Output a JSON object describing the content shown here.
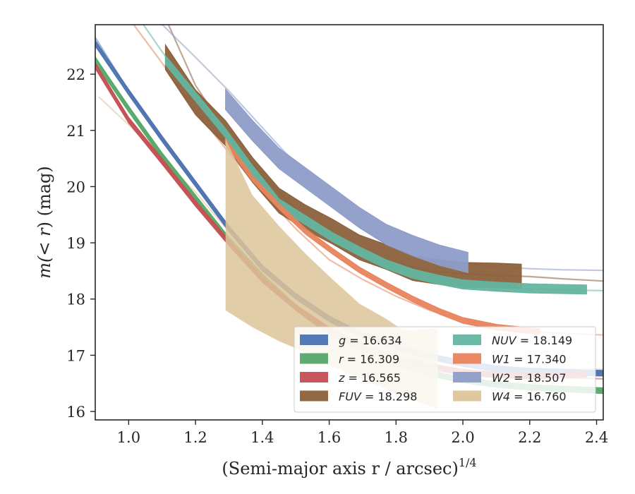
{
  "chart_data": {
    "type": "line",
    "xlabel": "(Semi-major axis r / arcsec)",
    "xlabel_superscript": "1/4",
    "ylabel_pre": "m(",
    "ylabel_mid": "< r",
    "ylabel_post": ") (mag)",
    "xlim": [
      0.9,
      2.42
    ],
    "ylim": [
      22.88,
      15.85
    ],
    "y_inverted": true,
    "grid": false,
    "legend_position": "lower-right",
    "xticks": [
      {
        "value": 1.0,
        "label": "1.0"
      },
      {
        "value": 1.2,
        "label": "1.2"
      },
      {
        "value": 1.4,
        "label": "1.4"
      },
      {
        "value": 1.6,
        "label": "1.6"
      },
      {
        "value": 1.8,
        "label": "1.8"
      },
      {
        "value": 2.0,
        "label": "2.0"
      },
      {
        "value": 2.2,
        "label": "2.2"
      },
      {
        "value": 2.4,
        "label": "2.4"
      }
    ],
    "yticks": [
      {
        "value": 16,
        "label": "16"
      },
      {
        "value": 17,
        "label": "17"
      },
      {
        "value": 18,
        "label": "18"
      },
      {
        "value": 19,
        "label": "19"
      },
      {
        "value": 20,
        "label": "20"
      },
      {
        "value": 21,
        "label": "21"
      },
      {
        "value": 22,
        "label": "22"
      }
    ],
    "series": [
      {
        "id": "g",
        "band": "g",
        "italic_band": true,
        "value": "16.634",
        "color": "#4c72b0",
        "fit": [
          [
            0.9,
            22.65
          ],
          [
            1.0,
            21.7
          ],
          [
            1.1,
            20.85
          ],
          [
            1.2,
            20.05
          ],
          [
            1.3,
            19.25
          ],
          [
            1.4,
            18.55
          ],
          [
            1.5,
            18.05
          ],
          [
            1.6,
            17.65
          ],
          [
            1.7,
            17.35
          ],
          [
            1.8,
            17.15
          ],
          [
            1.9,
            16.98
          ],
          [
            2.0,
            16.85
          ],
          [
            2.1,
            16.78
          ],
          [
            2.2,
            16.74
          ],
          [
            2.3,
            16.71
          ],
          [
            2.42,
            16.7
          ]
        ],
        "data": [
          [
            0.9,
            22.55
          ],
          [
            1.0,
            21.68
          ],
          [
            1.1,
            20.85
          ],
          [
            1.2,
            20.05
          ],
          [
            1.3,
            19.25
          ],
          [
            1.4,
            18.55
          ],
          [
            1.5,
            18.05
          ],
          [
            1.6,
            17.65
          ],
          [
            1.7,
            17.35
          ],
          [
            1.8,
            17.15
          ],
          [
            1.9,
            16.98
          ],
          [
            2.0,
            16.85
          ],
          [
            2.1,
            16.76
          ],
          [
            2.2,
            16.72
          ],
          [
            2.3,
            16.7
          ],
          [
            2.42,
            16.68
          ]
        ],
        "band_halfwidth": 0.05,
        "data_xmax": 2.42
      },
      {
        "id": "r",
        "band": "r",
        "italic_band": true,
        "value": "16.309",
        "color": "#55a868",
        "fit": [
          [
            0.9,
            22.3
          ],
          [
            1.0,
            21.4
          ],
          [
            1.1,
            20.55
          ],
          [
            1.2,
            19.8
          ],
          [
            1.3,
            19.05
          ],
          [
            1.4,
            18.4
          ],
          [
            1.5,
            17.85
          ],
          [
            1.6,
            17.4
          ],
          [
            1.7,
            17.1
          ],
          [
            1.8,
            16.85
          ],
          [
            1.9,
            16.68
          ],
          [
            2.0,
            16.56
          ],
          [
            2.1,
            16.48
          ],
          [
            2.2,
            16.43
          ],
          [
            2.3,
            16.4
          ],
          [
            2.42,
            16.38
          ]
        ],
        "data": [
          [
            0.9,
            22.25
          ],
          [
            1.0,
            21.38
          ],
          [
            1.1,
            20.55
          ],
          [
            1.2,
            19.8
          ],
          [
            1.3,
            19.05
          ],
          [
            1.4,
            18.4
          ],
          [
            1.5,
            17.85
          ],
          [
            1.6,
            17.4
          ],
          [
            1.7,
            17.1
          ],
          [
            1.8,
            16.85
          ],
          [
            1.9,
            16.68
          ],
          [
            2.0,
            16.56
          ],
          [
            2.1,
            16.48
          ],
          [
            2.2,
            16.43
          ],
          [
            2.3,
            16.4
          ],
          [
            2.42,
            16.37
          ]
        ],
        "band_halfwidth": 0.05,
        "data_xmax": 2.42
      },
      {
        "id": "z",
        "band": "z",
        "italic_band": true,
        "value": "16.565",
        "color": "#c44e52",
        "fit": [
          [
            0.9,
            22.2
          ],
          [
            1.0,
            21.2
          ],
          [
            1.1,
            20.45
          ],
          [
            1.2,
            19.7
          ],
          [
            1.3,
            19.0
          ],
          [
            1.4,
            18.35
          ],
          [
            1.5,
            17.85
          ],
          [
            1.6,
            17.45
          ],
          [
            1.7,
            17.15
          ],
          [
            1.8,
            16.95
          ],
          [
            1.9,
            16.8
          ],
          [
            2.0,
            16.7
          ],
          [
            2.1,
            16.65
          ],
          [
            2.2,
            16.62
          ],
          [
            2.3,
            16.6
          ],
          [
            2.42,
            16.58
          ]
        ],
        "data": [
          [
            0.9,
            22.15
          ],
          [
            1.0,
            21.18
          ],
          [
            1.1,
            20.45
          ],
          [
            1.2,
            19.7
          ],
          [
            1.3,
            19.0
          ],
          [
            1.4,
            18.35
          ],
          [
            1.5,
            17.85
          ],
          [
            1.6,
            17.45
          ],
          [
            1.7,
            17.15
          ],
          [
            1.8,
            16.95
          ],
          [
            1.9,
            16.8
          ],
          [
            2.0,
            16.7
          ],
          [
            2.1,
            16.65
          ],
          [
            2.2,
            16.63
          ],
          [
            2.37,
            16.66
          ]
        ],
        "band_halfwidth": 0.05,
        "data_xmax": 2.37
      },
      {
        "id": "FUV",
        "band": "FUV",
        "italic_band": true,
        "value": "18.298",
        "color": "#8c613c",
        "fit": [
          [
            1.11,
            23.0
          ],
          [
            1.2,
            21.8
          ],
          [
            1.3,
            20.9
          ],
          [
            1.4,
            20.2
          ],
          [
            1.5,
            19.6
          ],
          [
            1.6,
            19.15
          ],
          [
            1.7,
            18.85
          ],
          [
            1.8,
            18.65
          ],
          [
            1.9,
            18.5
          ],
          [
            2.0,
            18.45
          ],
          [
            2.1,
            18.42
          ],
          [
            2.2,
            18.4
          ],
          [
            2.3,
            18.36
          ],
          [
            2.42,
            18.32
          ]
        ],
        "data": [
          [
            1.11,
            22.3
          ],
          [
            1.2,
            21.5
          ],
          [
            1.29,
            20.95
          ],
          [
            1.37,
            20.3
          ],
          [
            1.45,
            19.75
          ],
          [
            1.53,
            19.45
          ],
          [
            1.61,
            19.2
          ],
          [
            1.69,
            18.92
          ],
          [
            1.77,
            18.75
          ],
          [
            1.85,
            18.55
          ],
          [
            1.93,
            18.48
          ],
          [
            2.0,
            18.43
          ],
          [
            2.1,
            18.42
          ],
          [
            2.175,
            18.4
          ]
        ],
        "band_halfwidth": 0.22,
        "data_xmax": 2.175
      },
      {
        "id": "NUV",
        "band": "NUV",
        "italic_band": true,
        "value": "18.149",
        "color": "#64b5a0",
        "fit": [
          [
            1.03,
            23.0
          ],
          [
            1.1,
            22.4
          ],
          [
            1.2,
            21.6
          ],
          [
            1.3,
            20.9
          ],
          [
            1.4,
            20.2
          ],
          [
            1.5,
            19.6
          ],
          [
            1.6,
            19.15
          ],
          [
            1.7,
            18.85
          ],
          [
            1.8,
            18.6
          ],
          [
            1.9,
            18.42
          ],
          [
            2.0,
            18.3
          ],
          [
            2.1,
            18.22
          ],
          [
            2.2,
            18.18
          ],
          [
            2.3,
            18.16
          ],
          [
            2.42,
            18.15
          ]
        ],
        "data": [
          [
            1.11,
            22.25
          ],
          [
            1.2,
            21.6
          ],
          [
            1.29,
            20.95
          ],
          [
            1.37,
            20.3
          ],
          [
            1.45,
            19.7
          ],
          [
            1.53,
            19.4
          ],
          [
            1.61,
            19.1
          ],
          [
            1.69,
            18.85
          ],
          [
            1.77,
            18.62
          ],
          [
            1.85,
            18.45
          ],
          [
            1.93,
            18.34
          ],
          [
            2.0,
            18.26
          ],
          [
            2.1,
            18.22
          ],
          [
            2.2,
            18.19
          ],
          [
            2.37,
            18.17
          ]
        ],
        "band_halfwidth": 0.08,
        "data_xmax": 2.37
      },
      {
        "id": "W1",
        "band": "W1",
        "italic_band": true,
        "value": "17.340",
        "color": "#e8845d",
        "fit": [
          [
            1.0,
            23.0
          ],
          [
            1.1,
            22.2
          ],
          [
            1.2,
            21.35
          ],
          [
            1.3,
            20.6
          ],
          [
            1.4,
            19.9
          ],
          [
            1.5,
            19.25
          ],
          [
            1.6,
            18.7
          ],
          [
            1.7,
            18.35
          ],
          [
            1.8,
            18.05
          ],
          [
            1.9,
            17.8
          ],
          [
            2.0,
            17.62
          ],
          [
            2.1,
            17.5
          ],
          [
            2.2,
            17.43
          ],
          [
            2.3,
            17.39
          ],
          [
            2.42,
            17.36
          ]
        ],
        "data": [
          [
            1.29,
            20.8
          ],
          [
            1.37,
            20.15
          ],
          [
            1.45,
            19.65
          ],
          [
            1.53,
            19.2
          ],
          [
            1.61,
            18.85
          ],
          [
            1.69,
            18.52
          ],
          [
            1.77,
            18.25
          ],
          [
            1.85,
            18.0
          ],
          [
            1.93,
            17.78
          ],
          [
            2.0,
            17.62
          ],
          [
            2.1,
            17.5
          ],
          [
            2.23,
            17.42
          ]
        ],
        "band_halfwidth": 0.05,
        "data_xmax": 2.23
      },
      {
        "id": "W2",
        "band": "W2",
        "italic_band": true,
        "value": "18.507",
        "color": "#8e9dc8",
        "fit": [
          [
            1.08,
            23.0
          ],
          [
            1.2,
            22.3
          ],
          [
            1.3,
            21.7
          ],
          [
            1.4,
            21.05
          ],
          [
            1.5,
            20.4
          ],
          [
            1.6,
            19.85
          ],
          [
            1.7,
            19.4
          ],
          [
            1.8,
            19.05
          ],
          [
            1.9,
            18.8
          ],
          [
            2.0,
            18.65
          ],
          [
            2.1,
            18.57
          ],
          [
            2.2,
            18.54
          ],
          [
            2.3,
            18.52
          ],
          [
            2.42,
            18.51
          ]
        ],
        "data": [
          [
            1.29,
            21.55
          ],
          [
            1.37,
            21.0
          ],
          [
            1.45,
            20.5
          ],
          [
            1.53,
            20.15
          ],
          [
            1.61,
            19.8
          ],
          [
            1.69,
            19.45
          ],
          [
            1.77,
            19.15
          ],
          [
            1.85,
            18.95
          ],
          [
            1.93,
            18.78
          ],
          [
            2.015,
            18.65
          ]
        ],
        "band_halfwidth": 0.18,
        "data_xmax": 2.015
      },
      {
        "id": "W4",
        "band": "W4",
        "italic_band": true,
        "value": "16.760",
        "color": "#ddc49a",
        "fit": [
          [
            0.91,
            21.6
          ],
          [
            1.0,
            21.1
          ],
          [
            1.1,
            20.5
          ],
          [
            1.2,
            19.9
          ],
          [
            1.3,
            19.2
          ],
          [
            1.4,
            18.55
          ],
          [
            1.5,
            18.0
          ],
          [
            1.6,
            17.6
          ],
          [
            1.7,
            17.3
          ],
          [
            1.8,
            17.1
          ],
          [
            1.9,
            16.95
          ],
          [
            2.0,
            16.85
          ],
          [
            2.1,
            16.8
          ],
          [
            2.2,
            16.77
          ],
          [
            2.3,
            16.76
          ],
          [
            2.42,
            16.75
          ]
        ],
        "band_upper": [
          [
            1.29,
            17.8
          ],
          [
            1.37,
            17.5
          ],
          [
            1.45,
            17.25
          ],
          [
            1.53,
            17.05
          ],
          [
            1.61,
            16.8
          ],
          [
            1.69,
            16.6
          ],
          [
            1.77,
            16.4
          ],
          [
            1.82,
            16.25
          ],
          [
            1.85,
            16.2
          ],
          [
            1.925,
            16.05
          ]
        ],
        "band_lower": [
          [
            1.29,
            20.85
          ],
          [
            1.37,
            19.85
          ],
          [
            1.45,
            19.3
          ],
          [
            1.53,
            18.8
          ],
          [
            1.61,
            18.35
          ],
          [
            1.69,
            17.92
          ],
          [
            1.77,
            17.65
          ],
          [
            1.82,
            17.45
          ],
          [
            1.85,
            17.45
          ],
          [
            1.925,
            17.48
          ]
        ],
        "data_xmax": 1.925
      }
    ],
    "legend_columns": [
      [
        "g",
        "r",
        "z",
        "FUV"
      ],
      [
        "NUV",
        "W1",
        "W2",
        "W4"
      ]
    ]
  }
}
